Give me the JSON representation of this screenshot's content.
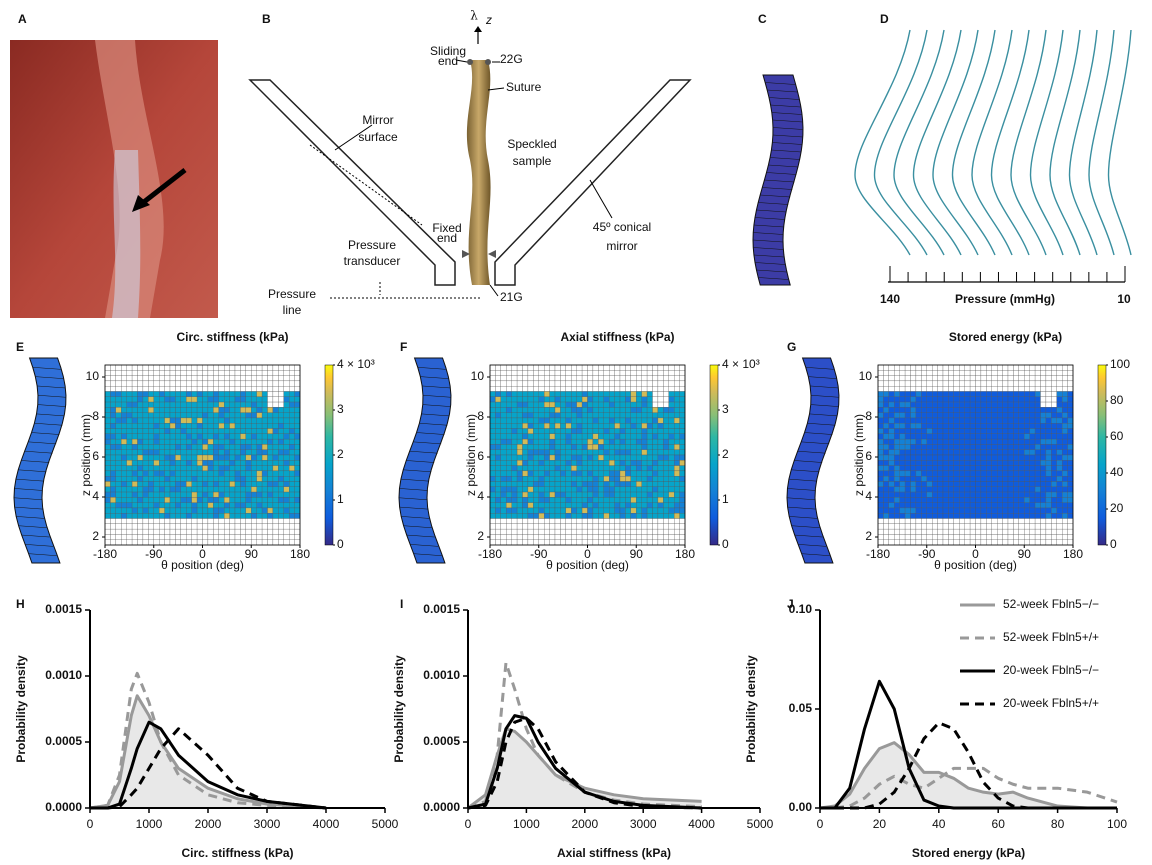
{
  "panel_labels": [
    "A",
    "B",
    "C",
    "D",
    "E",
    "F",
    "G",
    "H",
    "I",
    "J"
  ],
  "schematic": {
    "lambda": "λ",
    "lambda_sub": "z",
    "sliding_end": [
      "Sliding",
      "end"
    ],
    "gauge_top": "22G",
    "suture": "Suture",
    "mirror_surface": [
      "Mirror",
      "surface"
    ],
    "sample": [
      "Speckled",
      "sample"
    ],
    "fixed_end": [
      "Fixed",
      "end"
    ],
    "mirror": [
      "45º conical",
      "mirror"
    ],
    "transducer": [
      "Pressure",
      "transducer"
    ],
    "line": [
      "Pressure",
      "line"
    ],
    "gauge_bottom": "21G"
  },
  "pressure_scale": {
    "high": "140",
    "title": "Pressure (mmHg)",
    "low": "10"
  },
  "maps": [
    {
      "title": "Circ. stiffness (kPa)",
      "xlabel": "θ position (deg)",
      "ylabel": "z position (mm)",
      "xlim": [
        -180,
        180
      ],
      "ylim": [
        1.6,
        10.6
      ],
      "xticks": [
        -180,
        -90,
        0,
        90,
        180
      ],
      "yticks": [
        2,
        4,
        6,
        8,
        10
      ],
      "clim": [
        0,
        4
      ],
      "cticks": [
        0,
        1,
        2,
        3,
        {
          "value": 4,
          "label": "4 × 10³"
        }
      ]
    },
    {
      "title": "Axial stiffness (kPa)",
      "xlabel": "θ position (deg)",
      "ylabel": "z position (mm)",
      "xlim": [
        -180,
        180
      ],
      "ylim": [
        1.6,
        10.6
      ],
      "xticks": [
        -180,
        -90,
        0,
        90,
        180
      ],
      "yticks": [
        2,
        4,
        6,
        8,
        10
      ],
      "clim": [
        0,
        4
      ],
      "cticks": [
        0,
        1,
        2,
        3,
        {
          "value": 4,
          "label": "4 × 10³"
        }
      ]
    },
    {
      "title": "Stored energy (kPa)",
      "xlabel": "θ position (deg)",
      "ylabel": "z position (mm)",
      "xlim": [
        -180,
        180
      ],
      "ylim": [
        1.6,
        10.6
      ],
      "xticks": [
        -180,
        -90,
        0,
        90,
        180
      ],
      "yticks": [
        2,
        4,
        6,
        8,
        10
      ],
      "clim": [
        0,
        100
      ],
      "cticks": [
        0,
        20,
        40,
        60,
        80,
        100
      ]
    }
  ],
  "chart_data": [
    {
      "type": "line",
      "xlabel": "Circ. stiffness (kPa)",
      "ylabel": "Probability density",
      "x": [
        0,
        300,
        500,
        700,
        800,
        1000,
        1200,
        1500,
        2000,
        2500,
        3000,
        4000
      ],
      "xlim": [
        0,
        5000
      ],
      "xticks": [
        0,
        1000,
        2000,
        3000,
        4000,
        5000
      ],
      "ylim": [
        0,
        0.0015
      ],
      "yticks": [
        {
          "value": 0,
          "label": "0.0000"
        },
        {
          "value": 0.0005,
          "label": "0.0005"
        },
        {
          "value": 0.001,
          "label": "0.0010"
        },
        {
          "value": 0.0015,
          "label": "0.0015"
        }
      ],
      "series": [
        {
          "color": "#999999",
          "style": "solid",
          "fill": "#e8e8e8",
          "values": [
            0,
            2e-05,
            0.0002,
            0.0007,
            0.00085,
            0.0007,
            0.0005,
            0.0003,
            0.00015,
            7e-05,
            3e-05,
            0
          ]
        },
        {
          "color": "#999999",
          "style": "dashed",
          "values": [
            0,
            2e-05,
            0.00025,
            0.0009,
            0.00102,
            0.0008,
            0.0005,
            0.00025,
            0.0001,
            4e-05,
            2e-05,
            0
          ]
        },
        {
          "color": "#000000",
          "style": "solid",
          "values": [
            0,
            0,
            3e-05,
            0.0003,
            0.00045,
            0.00065,
            0.0006,
            0.0004,
            0.0002,
            0.0001,
            5e-05,
            0
          ]
        },
        {
          "color": "#000000",
          "style": "dashed",
          "values": [
            0,
            0,
            1e-05,
            0.0001,
            0.00015,
            0.0003,
            0.00045,
            0.0006,
            0.0004,
            0.00015,
            5e-05,
            0
          ]
        }
      ]
    },
    {
      "type": "line",
      "xlabel": "Axial stiffness (kPa)",
      "ylabel": "Probability density",
      "x": [
        0,
        300,
        500,
        650,
        800,
        1000,
        1200,
        1500,
        2000,
        2500,
        3000,
        4000
      ],
      "xlim": [
        0,
        5000
      ],
      "xticks": [
        0,
        1000,
        2000,
        3000,
        4000,
        5000
      ],
      "ylim": [
        0,
        0.0015
      ],
      "yticks": [
        {
          "value": 0,
          "label": "0.0000"
        },
        {
          "value": 0.0005,
          "label": "0.0005"
        },
        {
          "value": 0.001,
          "label": "0.0010"
        },
        {
          "value": 0.0015,
          "label": "0.0015"
        }
      ],
      "series": [
        {
          "color": "#999999",
          "style": "solid",
          "fill": "#e8e8e8",
          "values": [
            0,
            0.0001,
            0.0004,
            0.0006,
            0.00058,
            0.0005,
            0.0004,
            0.00025,
            0.00015,
            0.0001,
            7e-05,
            5e-05
          ]
        },
        {
          "color": "#999999",
          "style": "dashed",
          "values": [
            0,
            5e-05,
            0.0004,
            0.0011,
            0.0009,
            0.0006,
            0.0004,
            0.00025,
            0.00012,
            6e-05,
            3e-05,
            1e-05
          ]
        },
        {
          "color": "#000000",
          "style": "solid",
          "values": [
            0,
            3e-05,
            0.0003,
            0.0006,
            0.0007,
            0.00068,
            0.0005,
            0.0003,
            0.00012,
            5e-05,
            2e-05,
            0
          ]
        },
        {
          "color": "#000000",
          "style": "dashed",
          "values": [
            0,
            2e-05,
            0.0002,
            0.0005,
            0.00065,
            0.00068,
            0.0006,
            0.00035,
            0.00012,
            4e-05,
            1e-05,
            0
          ]
        }
      ]
    },
    {
      "type": "line",
      "xlabel": "Stored energy (kPa)",
      "ylabel": "Probability density",
      "x": [
        0,
        5,
        10,
        15,
        20,
        25,
        30,
        35,
        40,
        45,
        50,
        55,
        60,
        65,
        70,
        80,
        90,
        100
      ],
      "xlim": [
        0,
        100
      ],
      "xticks": [
        0,
        20,
        40,
        60,
        80,
        100
      ],
      "ylim": [
        0,
        0.1
      ],
      "yticks": [
        {
          "value": 0,
          "label": "0.00"
        },
        {
          "value": 0.05,
          "label": "0.05"
        },
        {
          "value": 0.1,
          "label": "0.10"
        }
      ],
      "series": [
        {
          "name": "52-week Fbln5−/−",
          "color": "#999999",
          "style": "solid",
          "fill": "#e8e8e8",
          "values": [
            0,
            0.001,
            0.007,
            0.02,
            0.03,
            0.033,
            0.027,
            0.018,
            0.018,
            0.015,
            0.01,
            0.008,
            0.007,
            0.008,
            0.005,
            0.001,
            0,
            0
          ]
        },
        {
          "name": "52-week Fbln5+/+",
          "color": "#999999",
          "style": "dashed",
          "values": [
            0,
            0,
            0.001,
            0.005,
            0.012,
            0.016,
            0.012,
            0.01,
            0.015,
            0.02,
            0.02,
            0.02,
            0.015,
            0.012,
            0.01,
            0.01,
            0.008,
            0.003
          ]
        },
        {
          "name": "20-week Fbln5−/−",
          "color": "#000000",
          "style": "solid",
          "values": [
            0,
            0,
            0.01,
            0.04,
            0.064,
            0.05,
            0.02,
            0.004,
            0.001,
            0,
            0,
            0,
            0,
            0,
            0,
            0,
            0,
            0
          ]
        },
        {
          "name": "20-week Fbln5+/+",
          "color": "#000000",
          "style": "dashed",
          "values": [
            0,
            0,
            0,
            0,
            0.002,
            0.008,
            0.02,
            0.035,
            0.043,
            0.04,
            0.028,
            0.013,
            0.005,
            0.001,
            0,
            0,
            0,
            0
          ]
        }
      ]
    }
  ]
}
